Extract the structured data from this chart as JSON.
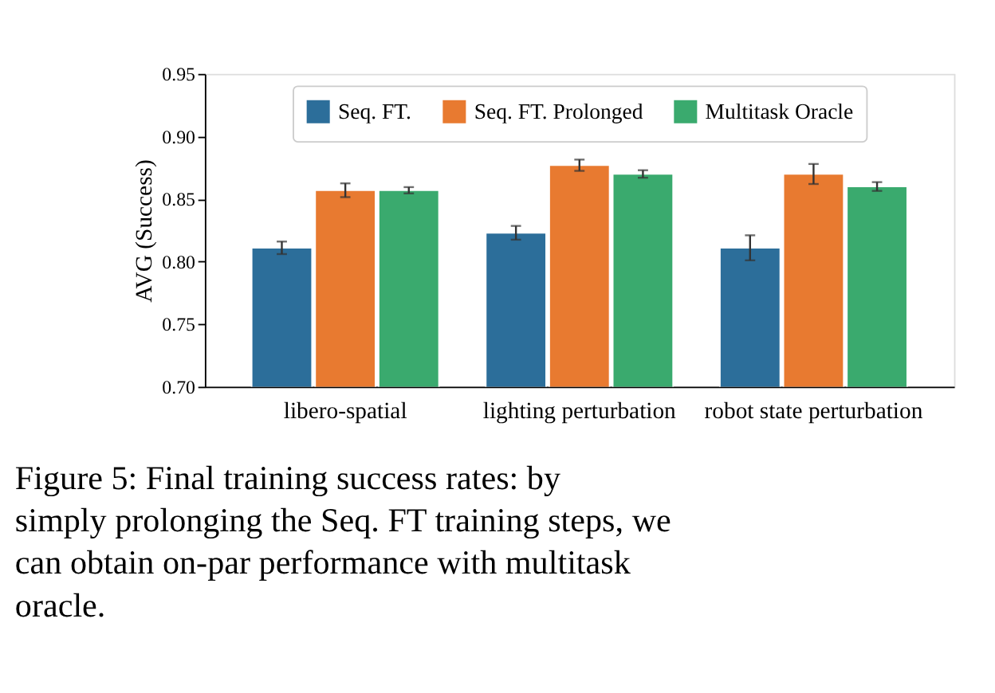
{
  "chart_data": {
    "type": "bar",
    "categories": [
      "libero-spatial",
      "lighting perturbation",
      "robot state perturbation"
    ],
    "series": [
      {
        "name": "Seq. FT.",
        "color": "#2c6e9a",
        "values": [
          0.811,
          0.823,
          0.811
        ],
        "errors": [
          0.005,
          0.0055,
          0.01
        ]
      },
      {
        "name": "Seq. FT. Prolonged",
        "color": "#e87a30",
        "values": [
          0.857,
          0.877,
          0.87
        ],
        "errors": [
          0.0055,
          0.0045,
          0.008
        ]
      },
      {
        "name": "Multitask Oracle",
        "color": "#3aaa6e",
        "values": [
          0.857,
          0.87,
          0.86
        ],
        "errors": [
          0.0025,
          0.003,
          0.0035
        ]
      }
    ],
    "ylabel": "AVG (Success)",
    "ylim": [
      0.7,
      0.95
    ],
    "yticks": [
      {
        "value": 0.7,
        "label": "0.70"
      },
      0.75,
      {
        "value": 0.8,
        "label": "0.80"
      },
      0.85,
      {
        "value": 0.9,
        "label": "0.90"
      },
      0.95
    ],
    "grid": false,
    "legend": "top",
    "annotations": [
      "Figure 5: Final training success rates: by simply prolonging the Seq. FT training steps, we can obtain on-par performance with multitask oracle."
    ]
  }
}
